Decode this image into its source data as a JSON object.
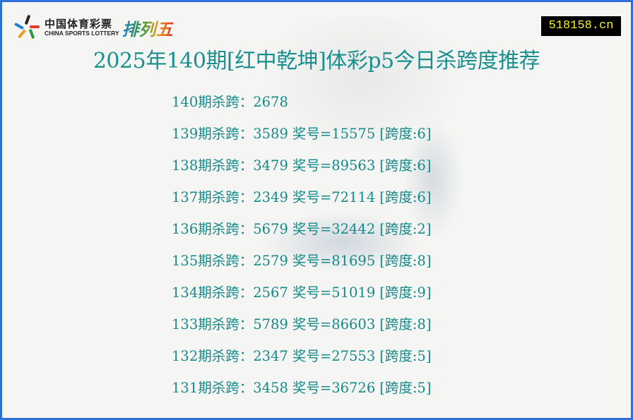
{
  "logo": {
    "cn": "中国体育彩票",
    "en": "CHINA SPORTS LOTTERY",
    "game": "排列五"
  },
  "site_badge": "518158.cn",
  "title": "2025年140期[红中乾坤]体彩p5今日杀跨度推荐",
  "current": {
    "label": "140期杀跨：",
    "value": "2678"
  },
  "history": [
    {
      "label": "139期杀跨：",
      "kill": "3589",
      "draw": "奖号=15575",
      "span": "[跨度:6]"
    },
    {
      "label": "138期杀跨：",
      "kill": "3479",
      "draw": "奖号=89563",
      "span": "[跨度:6]"
    },
    {
      "label": "137期杀跨：",
      "kill": "2349",
      "draw": "奖号=72114",
      "span": "[跨度:6]"
    },
    {
      "label": "136期杀跨：",
      "kill": "5679",
      "draw": "奖号=32442",
      "span": "[跨度:2]"
    },
    {
      "label": "135期杀跨：",
      "kill": "2579",
      "draw": "奖号=81695",
      "span": "[跨度:8]"
    },
    {
      "label": "134期杀跨：",
      "kill": "2567",
      "draw": "奖号=51019",
      "span": "[跨度:9]"
    },
    {
      "label": "133期杀跨：",
      "kill": "5789",
      "draw": "奖号=86603",
      "span": "[跨度:8]"
    },
    {
      "label": "132期杀跨：",
      "kill": "2347",
      "draw": "奖号=27553",
      "span": "[跨度:5]"
    },
    {
      "label": "131期杀跨：",
      "kill": "3458",
      "draw": "奖号=36726",
      "span": "[跨度:5]"
    }
  ],
  "colors": {
    "border": "#2f6fd8",
    "text": "#148a8a",
    "badge_bg": "#000000",
    "badge_text": "#f5ef2a"
  }
}
